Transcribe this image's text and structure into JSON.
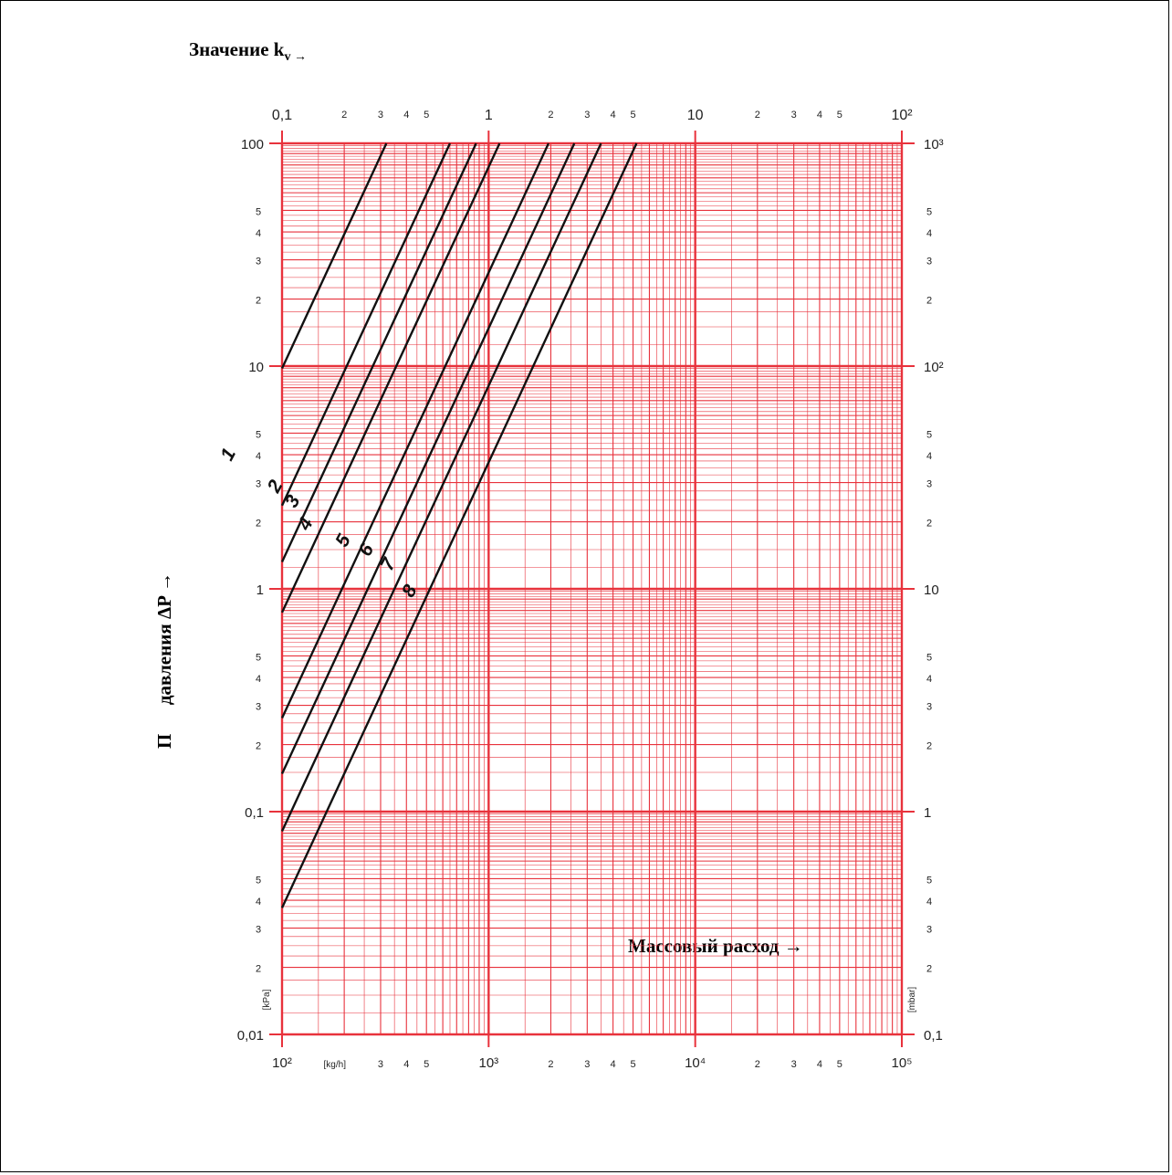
{
  "titles": {
    "top": "Значение k",
    "top_sub": "v →",
    "bottom": "Массовый расход →",
    "left_main": "давления ΔP →",
    "left_prefix": "П"
  },
  "colors": {
    "grid": "#e8323c",
    "curve": "#111111",
    "background": "#ffffff"
  },
  "chart_data": {
    "type": "line",
    "scale": "log-log",
    "grid": true,
    "axes": {
      "x_bottom": {
        "unit_label": "[kg/h]",
        "range": [
          100,
          100000
        ],
        "decade_labels": [
          "10²",
          "10³",
          "10⁴",
          "10⁵"
        ],
        "minor_labels": [
          "2",
          "3",
          "4",
          "5"
        ]
      },
      "x_top": {
        "range": [
          0.1,
          100
        ],
        "decade_labels": [
          "0,1",
          "1",
          "10",
          "10²"
        ],
        "minor_labels": [
          "2",
          "3",
          "4",
          "5"
        ]
      },
      "y_left": {
        "unit_label": "[kPa]",
        "range": [
          0.01,
          100
        ],
        "decade_labels": [
          "0,01",
          "0,1",
          "1",
          "10",
          "100"
        ],
        "minor_labels": [
          "2",
          "3",
          "4",
          "5"
        ]
      },
      "y_right": {
        "unit_label": "[mbar]",
        "range": [
          0.1,
          1000
        ],
        "decade_labels": [
          "0,1",
          "1",
          "10",
          "10²",
          "10³"
        ],
        "minor_labels": [
          "2",
          "3",
          "4",
          "5"
        ]
      }
    },
    "series": [
      {
        "name": "1",
        "kv": 0.32
      },
      {
        "name": "2",
        "kv": 0.65
      },
      {
        "name": "3",
        "kv": 0.87
      },
      {
        "name": "4",
        "kv": 1.13
      },
      {
        "name": "5",
        "kv": 1.95
      },
      {
        "name": "6",
        "kv": 2.6
      },
      {
        "name": "7",
        "kv": 3.5
      },
      {
        "name": "8",
        "kv": 5.2
      }
    ]
  }
}
